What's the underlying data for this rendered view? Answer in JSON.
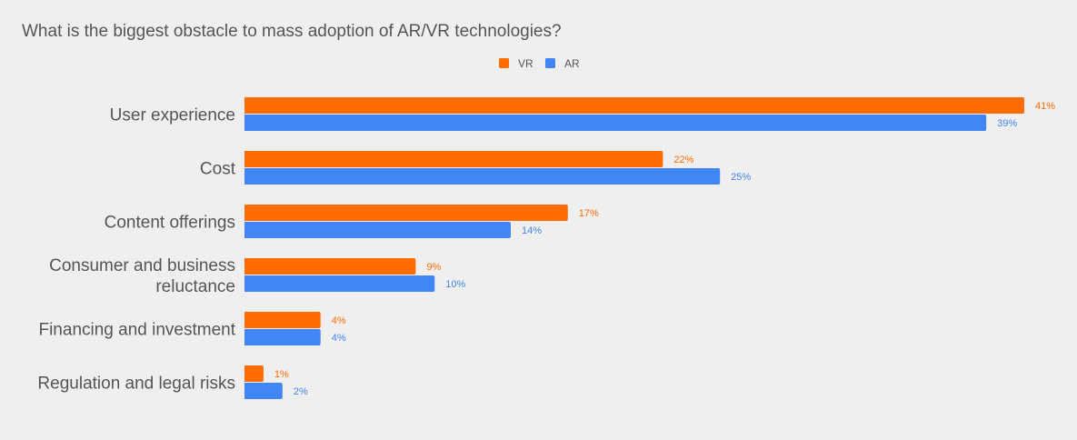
{
  "chart_data": {
    "type": "bar",
    "orientation": "horizontal",
    "title": "What is the biggest obstacle to mass adoption of AR/VR technologies?",
    "legend_position": "top",
    "grid": false,
    "xlim": [
      0,
      41
    ],
    "value_suffix": "%",
    "categories": [
      [
        "User experience"
      ],
      [
        "Cost"
      ],
      [
        "Content offerings"
      ],
      [
        "Consumer and business",
        "reluctance"
      ],
      [
        "Financing and investment"
      ],
      [
        "Regulation and legal risks"
      ]
    ],
    "series": [
      {
        "name": "VR",
        "color": "#ff6d01",
        "values": [
          41,
          22,
          17,
          9,
          4,
          1
        ]
      },
      {
        "name": "AR",
        "color": "#4285f4",
        "values": [
          39,
          25,
          14,
          10,
          4,
          2
        ]
      }
    ]
  }
}
